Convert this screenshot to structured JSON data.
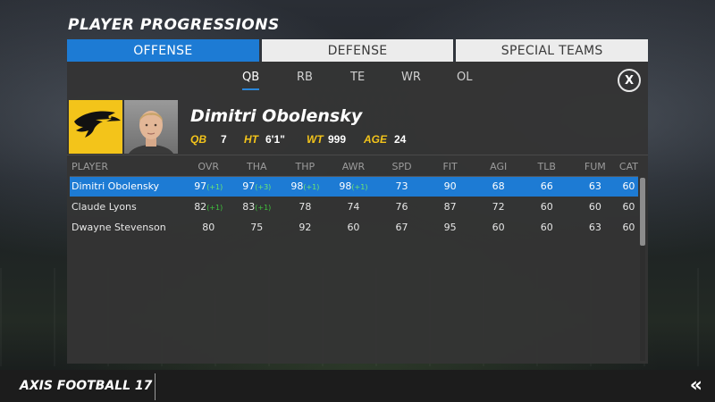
{
  "page_title": "PLAYER PROGRESSIONS",
  "tabs": [
    {
      "label": "OFFENSE",
      "active": true
    },
    {
      "label": "DEFENSE",
      "active": false
    },
    {
      "label": "SPECIAL TEAMS",
      "active": false
    }
  ],
  "positions": [
    {
      "label": "QB",
      "active": true
    },
    {
      "label": "RB",
      "active": false
    },
    {
      "label": "TE",
      "active": false
    },
    {
      "label": "WR",
      "active": false
    },
    {
      "label": "OL",
      "active": false
    }
  ],
  "close_label": "X",
  "player": {
    "name": "Dimitri Obolensky",
    "position": "QB",
    "number": "7",
    "ht_label": "HT",
    "height": "6'1\"",
    "wt_label": "WT",
    "weight": "999",
    "age_label": "AGE",
    "age": "24"
  },
  "table": {
    "headers": [
      "PLAYER",
      "OVR",
      "THA",
      "THP",
      "AWR",
      "SPD",
      "FIT",
      "AGI",
      "TLB",
      "FUM",
      "CAT"
    ],
    "rows": [
      {
        "name": "Dimitri Obolensky",
        "selected": true,
        "cells": [
          [
            "97",
            "(+1)"
          ],
          [
            "97",
            "(+3)"
          ],
          [
            "98",
            "(+1)"
          ],
          [
            "98",
            "(+1)"
          ],
          [
            "73",
            ""
          ],
          [
            "90",
            ""
          ],
          [
            "68",
            ""
          ],
          [
            "66",
            ""
          ],
          [
            "63",
            ""
          ],
          [
            "60",
            ""
          ]
        ]
      },
      {
        "name": "Claude Lyons",
        "selected": false,
        "cells": [
          [
            "82",
            "(+1)"
          ],
          [
            "83",
            "(+1)"
          ],
          [
            "78",
            ""
          ],
          [
            "74",
            ""
          ],
          [
            "76",
            ""
          ],
          [
            "87",
            ""
          ],
          [
            "72",
            ""
          ],
          [
            "60",
            ""
          ],
          [
            "60",
            ""
          ],
          [
            "60",
            ""
          ]
        ]
      },
      {
        "name": "Dwayne Stevenson",
        "selected": false,
        "cells": [
          [
            "80",
            ""
          ],
          [
            "75",
            ""
          ],
          [
            "92",
            ""
          ],
          [
            "60",
            ""
          ],
          [
            "67",
            ""
          ],
          [
            "95",
            ""
          ],
          [
            "60",
            ""
          ],
          [
            "60",
            ""
          ],
          [
            "63",
            ""
          ],
          [
            "60",
            ""
          ]
        ]
      }
    ]
  },
  "footer": {
    "title": "AXIS FOOTBALL 17",
    "back_icon": "double-chevron-left-icon"
  },
  "colors": {
    "accent_blue": "#1d7bd4",
    "team_yellow": "#f3c41a",
    "bonus_green": "#3ec43e"
  }
}
